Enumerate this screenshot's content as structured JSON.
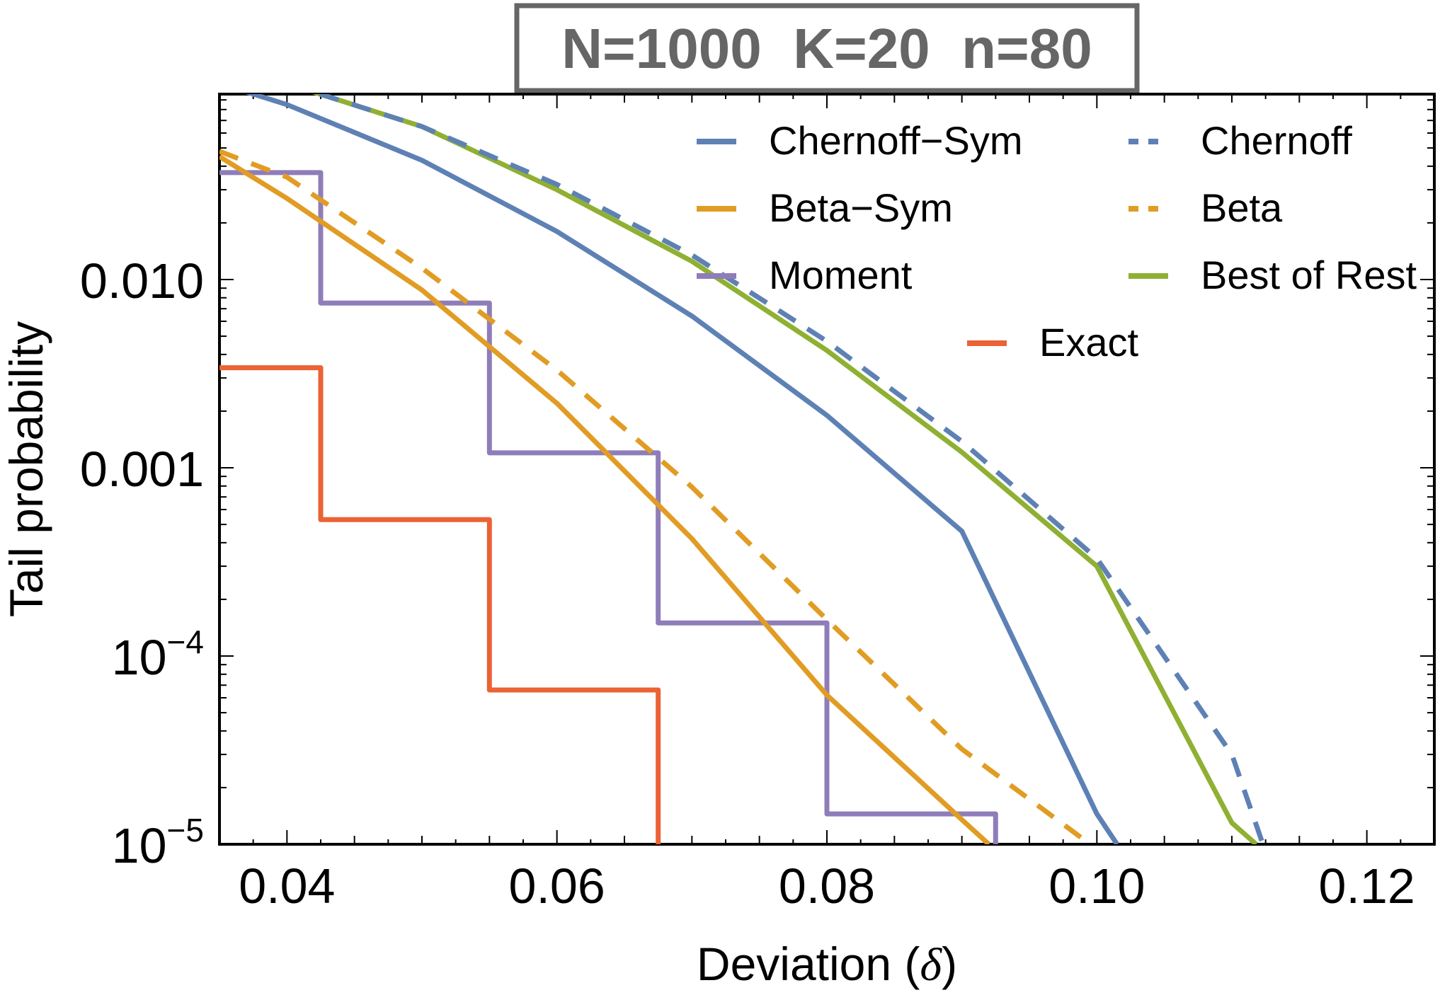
{
  "chart_data": {
    "type": "line",
    "title": "N=1000  K=20  n=80",
    "xlabel": "Deviation (",
    "xlabel_symbol": "δ",
    "xlabel_close": ")",
    "ylabel": "Tail probability",
    "x_scale": "linear",
    "y_scale": "log",
    "xlim": [
      0.035,
      0.125
    ],
    "ylim": [
      1e-05,
      0.1
    ],
    "x_ticks": [
      0.04,
      0.06,
      0.08,
      0.1,
      0.12
    ],
    "x_tick_labels": [
      "0.04",
      "0.06",
      "0.08",
      "0.10",
      "0.12"
    ],
    "y_ticks": [
      1e-05,
      0.0001,
      0.001,
      0.01
    ],
    "y_tick_labels": [
      {
        "base": "10",
        "exp": "−5"
      },
      {
        "base": "10",
        "exp": "−4"
      },
      {
        "base": "0.001",
        "exp": ""
      },
      {
        "base": "0.010",
        "exp": ""
      }
    ],
    "grid": false,
    "legend_position": "top-right",
    "series": [
      {
        "name": "Chernoff−Sym",
        "color": "#5e81b5",
        "style": "solid",
        "x": [
          0.035,
          0.04,
          0.05,
          0.06,
          0.07,
          0.08,
          0.09,
          0.1,
          0.1015
        ],
        "y": [
          0.11,
          0.085,
          0.043,
          0.018,
          0.0064,
          0.0019,
          0.00046,
          1.45e-05,
          1e-05
        ]
      },
      {
        "name": "Chernoff",
        "color": "#5e81b5",
        "style": "dashed",
        "x": [
          0.035,
          0.04,
          0.05,
          0.06,
          0.07,
          0.08,
          0.09,
          0.1,
          0.11,
          0.1123
        ],
        "y": [
          0.12,
          0.11,
          0.065,
          0.032,
          0.0135,
          0.0047,
          0.00138,
          0.00033,
          3e-05,
          1e-05
        ]
      },
      {
        "name": "Beta−Sym",
        "color": "#e19c24",
        "style": "solid",
        "x": [
          0.035,
          0.04,
          0.05,
          0.06,
          0.07,
          0.08,
          0.09,
          0.092
        ],
        "y": [
          0.045,
          0.027,
          0.0088,
          0.0022,
          0.00042,
          6.2e-05,
          1.35e-05,
          1e-05
        ]
      },
      {
        "name": "Beta",
        "color": "#e19c24",
        "style": "dashed",
        "x": [
          0.035,
          0.04,
          0.05,
          0.06,
          0.07,
          0.08,
          0.09,
          0.0995
        ],
        "y": [
          0.048,
          0.035,
          0.0115,
          0.0033,
          0.00079,
          0.000156,
          3.2e-05,
          1e-05
        ]
      },
      {
        "name": "Moment",
        "color": "#8f7dba",
        "style": "step",
        "x": [
          0.035,
          0.0425,
          0.0425,
          0.055,
          0.055,
          0.0675,
          0.0675,
          0.08,
          0.08,
          0.0925,
          0.0925
        ],
        "y": [
          0.037,
          0.037,
          0.0075,
          0.0075,
          0.0012,
          0.0012,
          0.00015,
          0.00015,
          1.45e-05,
          1.45e-05,
          1e-05
        ]
      },
      {
        "name": "Best of Rest",
        "color": "#8fb032",
        "style": "solid",
        "x": [
          0.035,
          0.04,
          0.05,
          0.06,
          0.07,
          0.08,
          0.09,
          0.1,
          0.11,
          0.1118
        ],
        "y": [
          0.13,
          0.11,
          0.065,
          0.03,
          0.0125,
          0.0042,
          0.00121,
          0.0003,
          1.3e-05,
          1e-05
        ]
      },
      {
        "name": "Exact",
        "color": "#eb6235",
        "style": "step",
        "x": [
          0.035,
          0.0425,
          0.0425,
          0.055,
          0.055,
          0.0675,
          0.0675
        ],
        "y": [
          0.0034,
          0.0034,
          0.00053,
          0.00053,
          6.6e-05,
          6.6e-05,
          1e-05
        ]
      }
    ]
  }
}
